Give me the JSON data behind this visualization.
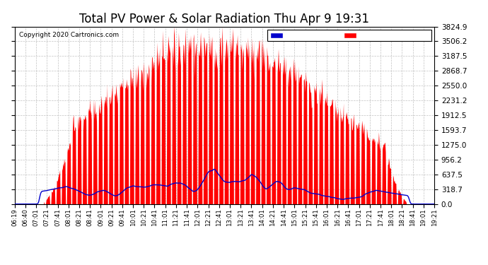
{
  "title": "Total PV Power & Solar Radiation Thu Apr 9 19:31",
  "copyright": "Copyright 2020 Cartronics.com",
  "yticks": [
    0.0,
    318.7,
    637.5,
    956.2,
    1275.0,
    1593.7,
    1912.5,
    2231.2,
    2550.0,
    2868.7,
    3187.5,
    3506.2,
    3824.9
  ],
  "ymax": 3824.9,
  "bg_color": "#ffffff",
  "plot_bg_color": "#ffffff",
  "grid_color": "#bbbbbb",
  "pv_color": "#ff0000",
  "radiation_color": "#0000cc",
  "title_fontsize": 12,
  "xtick_labels": [
    "06:19",
    "06:40",
    "07:01",
    "07:21",
    "07:41",
    "08:01",
    "08:21",
    "08:41",
    "09:01",
    "09:21",
    "09:41",
    "10:01",
    "10:21",
    "10:41",
    "11:01",
    "11:21",
    "11:41",
    "12:01",
    "12:21",
    "12:41",
    "13:01",
    "13:21",
    "13:41",
    "14:01",
    "14:21",
    "14:41",
    "15:01",
    "15:21",
    "15:41",
    "16:01",
    "16:21",
    "16:41",
    "17:01",
    "17:21",
    "17:41",
    "18:01",
    "18:21",
    "18:41",
    "19:01",
    "19:21"
  ],
  "n_points": 800
}
